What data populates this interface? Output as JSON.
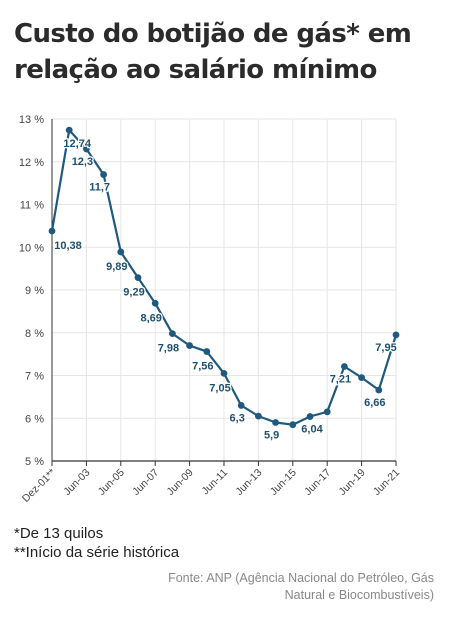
{
  "title": "Custo do botijão de gás* em relação ao salário mínimo",
  "footnotes": [
    "*De 13 quilos",
    "**Início da série histórica"
  ],
  "source": "Fonte: ANP (Agência Nacional do Petróleo, Gás Natural e Biocombustíveis)",
  "colors": {
    "line": "#1f5a7e",
    "point": "#1f5a7e",
    "grid": "#e6e6e6",
    "axis": "#333333",
    "label": "#1f4f6e"
  },
  "chart_data": {
    "type": "line",
    "title": "Custo do botijão de gás* em relação ao salário mínimo",
    "xlabel": "",
    "ylabel": "",
    "ylim": [
      5,
      13
    ],
    "y_ticks": [
      5,
      6,
      7,
      8,
      9,
      10,
      11,
      12,
      13
    ],
    "y_tick_labels": [
      "5 %",
      "6 %",
      "7 %",
      "8 %",
      "9 %",
      "10 %",
      "11 %",
      "12 %",
      "13 %"
    ],
    "x_tick_labels": [
      "Dez-01**",
      "Jun-03",
      "Jun-05",
      "Jun-07",
      "Jun-09",
      "Jun-11",
      "Jun-13",
      "Jun-15",
      "Jun-17",
      "Jun-19",
      "Jun-21"
    ],
    "grid": true,
    "series": [
      {
        "values": [
          10.38,
          12.74,
          12.3,
          11.7,
          9.89,
          9.29,
          8.69,
          7.98,
          7.7,
          7.56,
          7.05,
          6.3,
          6.05,
          5.9,
          5.85,
          6.04,
          6.15,
          7.21,
          6.95,
          6.66,
          7.95
        ],
        "labels": [
          "10,38",
          "12,74",
          "12,3",
          "11,7",
          "9,89",
          "9,29",
          "8,69",
          "7,98",
          "",
          "7,56",
          "7,05",
          "6,3",
          "",
          "5,9",
          "",
          "6,04",
          "",
          "7,21",
          "",
          "6,66",
          "7,95"
        ]
      }
    ]
  }
}
